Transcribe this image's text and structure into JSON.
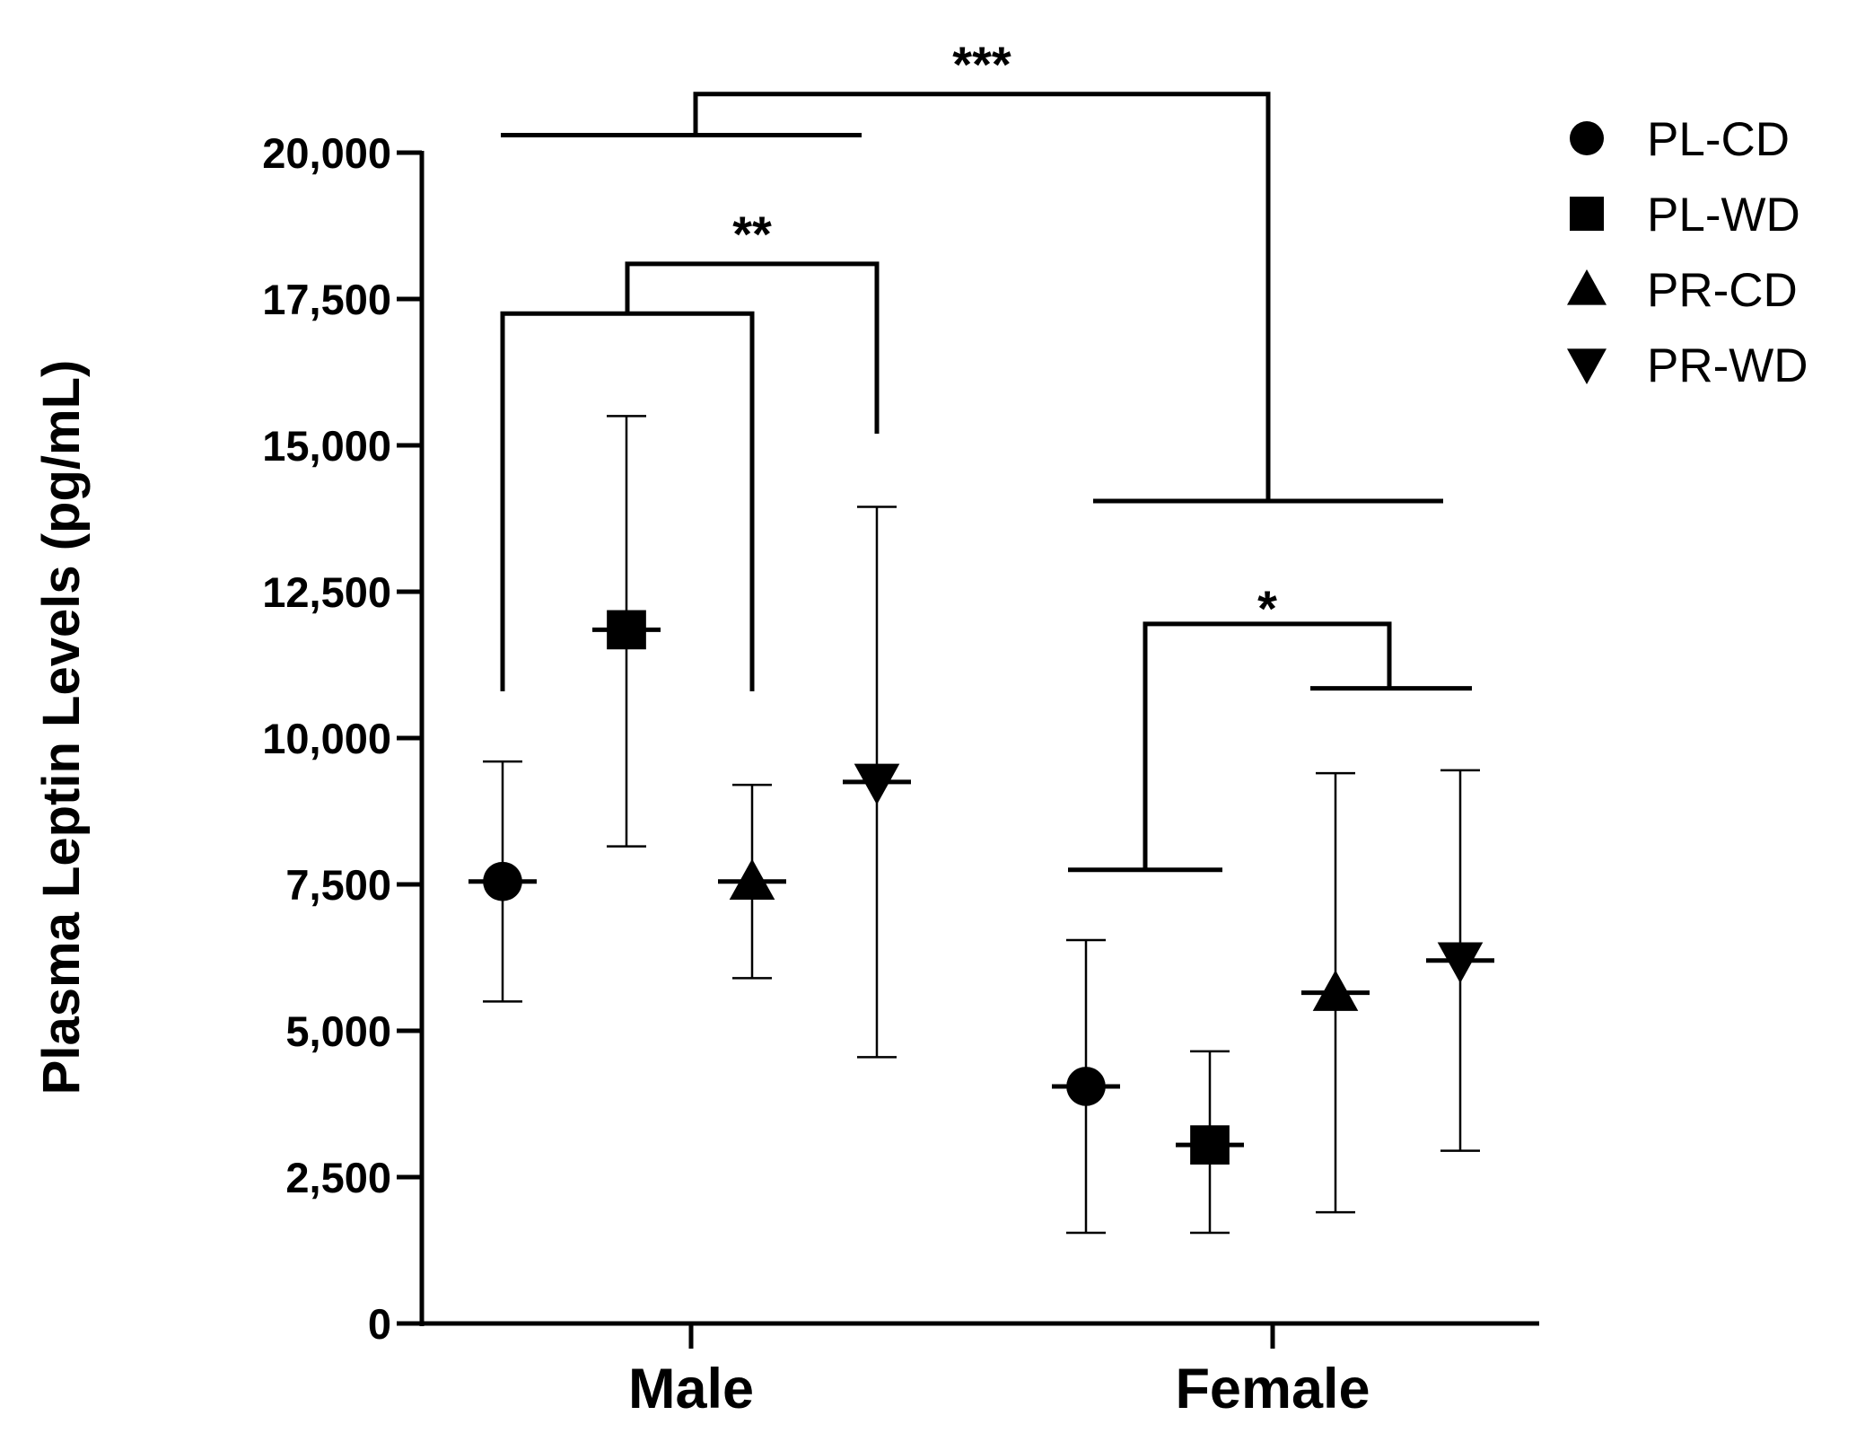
{
  "chart_data": {
    "type": "scatter",
    "title": "",
    "xlabel": "",
    "ylabel": "Plasma Leptin Levels (pg/mL)",
    "ylim": [
      0,
      20000
    ],
    "yticks": [
      0,
      2500,
      5000,
      7500,
      10000,
      12500,
      15000,
      17500,
      20000
    ],
    "ytick_labels": [
      "0",
      "2,500",
      "5,000",
      "7,500",
      "10,000",
      "12,500",
      "15,000",
      "17,500",
      "20,000"
    ],
    "categories": [
      "Male",
      "Female"
    ],
    "legend_position": "top-right",
    "series": [
      {
        "name": "PL-CD",
        "marker": "circle",
        "mean": [
          7550,
          4050
        ],
        "upper": [
          9600,
          6550
        ],
        "lower": [
          5500,
          1550
        ]
      },
      {
        "name": "PL-WD",
        "marker": "square",
        "mean": [
          11850,
          3050
        ],
        "upper": [
          15500,
          4650
        ],
        "lower": [
          8150,
          1550
        ]
      },
      {
        "name": "PR-CD",
        "marker": "triangle-up",
        "mean": [
          7550,
          5650
        ],
        "upper": [
          9200,
          9400
        ],
        "lower": [
          5900,
          1900
        ]
      },
      {
        "name": "PR-WD",
        "marker": "triangle-down",
        "mean": [
          9250,
          6200
        ],
        "upper": [
          13950,
          9450
        ],
        "lower": [
          4550,
          2950
        ]
      }
    ],
    "significance": [
      {
        "label": "***",
        "comparison": "Male vs Female",
        "bracket_y": 21000
      },
      {
        "label": "**",
        "comparison": "Male PL-CD/PR-CD vs Male PR-WD",
        "bracket_y": 18100
      },
      {
        "label": "*",
        "comparison": "Female PL-CD vs Female PR-CD/PR-WD",
        "bracket_y": 11950
      }
    ]
  }
}
